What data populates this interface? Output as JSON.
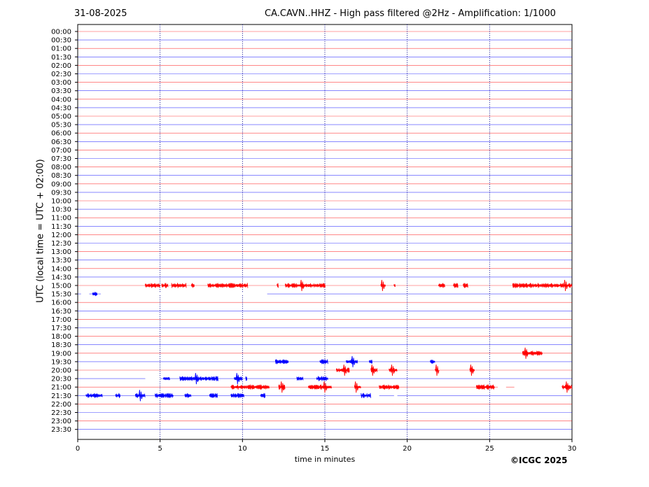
{
  "header": {
    "date": "31-08-2025",
    "title": "CA.CAVN..HHZ - High pass filtered @2Hz - Amplification: 1/1000"
  },
  "footer": {
    "copyright": "©ICGC 2025"
  },
  "colors": {
    "red_trace": "#ff0000",
    "blue_trace": "#0000ff",
    "grid": "#00008b"
  },
  "chart_data": {
    "type": "line",
    "title": "CA.CAVN..HHZ - High pass filtered @2Hz - Amplification: 1/1000",
    "xlabel": "time in minutes",
    "ylabel": "UTC (local time = UTC + 02:00)",
    "xlim": [
      0,
      30
    ],
    "x_ticks": [
      "0",
      "5",
      "10",
      "15",
      "20",
      "25",
      "30"
    ],
    "vertical_grid_at": [
      5,
      10,
      15,
      20,
      25
    ],
    "grid": "dotted vertical lines",
    "row_colors": [
      "red",
      "blue"
    ],
    "rows": [
      "00:00",
      "00:30",
      "01:00",
      "01:30",
      "02:00",
      "02:30",
      "03:00",
      "03:30",
      "04:00",
      "04:30",
      "05:00",
      "05:30",
      "06:00",
      "06:30",
      "07:00",
      "07:30",
      "08:00",
      "08:30",
      "09:00",
      "09:30",
      "10:00",
      "10:30",
      "11:00",
      "11:30",
      "12:00",
      "12:30",
      "13:00",
      "13:30",
      "14:00",
      "14:30",
      "15:00",
      "15:30",
      "16:00",
      "16:30",
      "17:00",
      "17:30",
      "18:00",
      "18:30",
      "19:00",
      "19:30",
      "20:00",
      "20:30",
      "21:00",
      "21:30",
      "22:00",
      "22:30",
      "23:00",
      "23:30"
    ],
    "events": [
      {
        "row": "15:00",
        "segments": [
          [
            4.1,
            5.0
          ],
          [
            5.1,
            5.5
          ],
          [
            5.7,
            6.6
          ],
          [
            6.9,
            7.1
          ],
          [
            7.9,
            10.3
          ],
          [
            12.1,
            12.2
          ],
          [
            12.6,
            15.0
          ],
          [
            18.4,
            18.7
          ],
          [
            19.2,
            19.3
          ],
          [
            21.9,
            22.3
          ],
          [
            22.8,
            23.1
          ],
          [
            23.4,
            23.7
          ],
          [
            26.4,
            30.0
          ]
        ],
        "peaks": [
          13.6,
          18.5,
          29.6
        ]
      },
      {
        "row": "15:30",
        "segments": [
          [
            0.9,
            1.2
          ]
        ],
        "peaks": []
      },
      {
        "row": "19:00",
        "segments": [
          [
            27.0,
            28.2
          ]
        ],
        "peaks": [
          27.2
        ]
      },
      {
        "row": "19:30",
        "segments": [
          [
            12.0,
            12.8
          ],
          [
            14.7,
            15.2
          ],
          [
            16.3,
            17.0
          ],
          [
            17.7,
            17.9
          ],
          [
            21.4,
            21.7
          ]
        ],
        "peaks": [
          16.7
        ]
      },
      {
        "row": "20:00",
        "segments": [
          [
            15.7,
            16.5
          ],
          [
            17.8,
            18.2
          ],
          [
            18.9,
            19.4
          ],
          [
            21.7,
            21.9
          ],
          [
            23.8,
            24.1
          ]
        ],
        "peaks": [
          16.2,
          17.9,
          19.1,
          21.8,
          23.9
        ]
      },
      {
        "row": "20:30",
        "segments": [
          [
            5.2,
            5.6
          ],
          [
            6.2,
            8.5
          ],
          [
            9.5,
            10.0
          ],
          [
            10.2,
            10.3
          ],
          [
            13.3,
            13.7
          ],
          [
            14.5,
            15.2
          ]
        ],
        "peaks": [
          7.2,
          9.7
        ]
      },
      {
        "row": "21:00",
        "segments": [
          [
            9.3,
            11.6
          ],
          [
            12.2,
            12.6
          ],
          [
            14.0,
            15.4
          ],
          [
            16.8,
            17.2
          ],
          [
            18.3,
            19.5
          ],
          [
            24.2,
            25.3
          ],
          [
            29.4,
            30.0
          ]
        ],
        "peaks": [
          12.4,
          15.0,
          16.9,
          29.7
        ]
      },
      {
        "row": "21:30",
        "segments": [
          [
            0.5,
            1.5
          ],
          [
            2.3,
            2.6
          ],
          [
            3.5,
            4.1
          ],
          [
            4.7,
            5.8
          ],
          [
            6.5,
            6.9
          ],
          [
            8.0,
            8.5
          ],
          [
            9.3,
            10.1
          ],
          [
            11.1,
            11.4
          ],
          [
            17.2,
            17.8
          ]
        ],
        "peaks": [
          3.8
        ]
      }
    ],
    "quiet_gaps": [
      {
        "row": "15:30",
        "segments": [
          [
            0.2,
            0.7
          ],
          [
            1.4,
            11.5
          ]
        ]
      },
      {
        "row": "20:30",
        "segments": [
          [
            4.1,
            5.0
          ]
        ]
      },
      {
        "row": "21:00",
        "segments": [
          [
            25.5,
            26.0
          ],
          [
            26.5,
            30.0
          ]
        ]
      },
      {
        "row": "21:30",
        "segments": [
          [
            17.8,
            18.3
          ],
          [
            19.2,
            19.4
          ]
        ]
      }
    ]
  }
}
